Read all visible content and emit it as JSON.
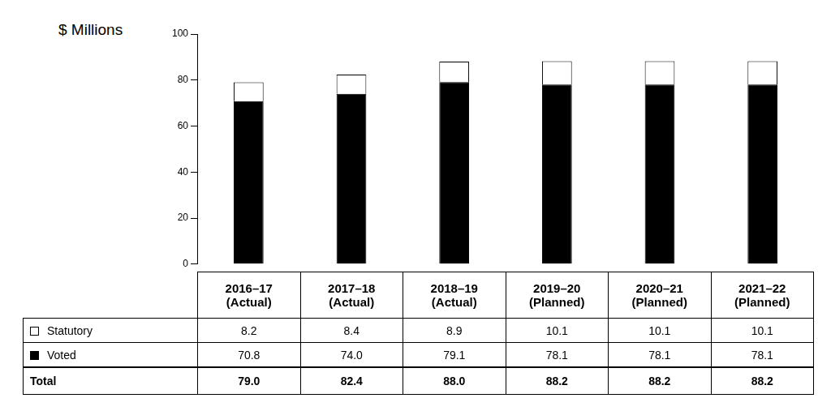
{
  "chart_data": {
    "type": "bar",
    "y_label": "$ Millions",
    "categories": [
      "2016–17\n(Actual)",
      "2017–18\n(Actual)",
      "2018–19\n(Actual)",
      "2019–20\n(Planned)",
      "2020–21\n(Planned)",
      "2021–22\n(Planned)"
    ],
    "series": [
      {
        "name": "Statutory",
        "color": "#ffffff",
        "values": [
          8.2,
          8.4,
          8.9,
          10.1,
          10.1,
          10.1
        ]
      },
      {
        "name": "Voted",
        "color": "#000000",
        "values": [
          70.8,
          74.0,
          79.1,
          78.1,
          78.1,
          78.1
        ],
        "value_labels": [
          "70.8",
          "74.0",
          "79.1",
          "78.1",
          "78.1",
          "78.1"
        ]
      }
    ],
    "totals": {
      "name": "Total",
      "values": [
        79.0,
        82.4,
        88.0,
        88.2,
        88.2,
        88.2
      ],
      "value_labels": [
        "79.0",
        "82.4",
        "88.0",
        "88.2",
        "88.2",
        "88.2"
      ]
    },
    "stacked": true,
    "grid": false,
    "ylim": [
      0,
      100
    ],
    "yticks": [
      0,
      20,
      40,
      60,
      80,
      100
    ]
  }
}
